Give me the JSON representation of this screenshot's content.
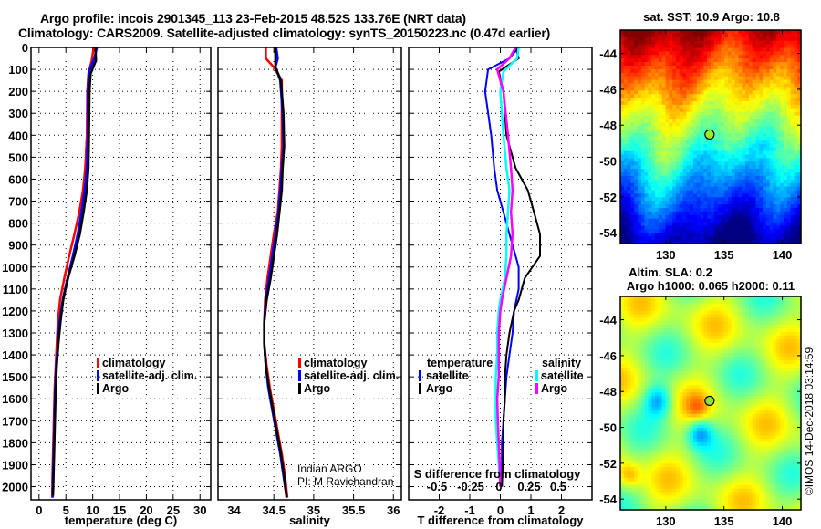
{
  "header": {
    "line1": "Argo profile: incois 2901345_113 23-Feb-2015 48.52S 133.76E (NRT data)",
    "line2": "Climatology: CARS2009. Satellite-adjusted climatology: synTS_20150223.nc (0.47d earlier)"
  },
  "colors": {
    "climatology": "#ff0000",
    "satellite_adj": "#0000ff",
    "argo": "#000000",
    "sal_satellite": "#00ffff",
    "sal_argo": "#ff00ff"
  },
  "chart_data": [
    {
      "type": "line",
      "name": "temperature-profile",
      "xlabel": "temperature (deg C)",
      "ylabel": "",
      "xlim": [
        -1.5,
        32
      ],
      "ylim": [
        2060,
        0
      ],
      "xticks": [
        0,
        5,
        10,
        15,
        20,
        25,
        30
      ],
      "yticks": [
        0,
        100,
        200,
        300,
        400,
        500,
        600,
        700,
        800,
        900,
        1000,
        1100,
        1200,
        1300,
        1400,
        1500,
        1600,
        1700,
        1800,
        1900,
        2000
      ],
      "grid": true,
      "legend": {
        "placement": "center-bottom",
        "entries": [
          "climatology",
          "satellite-adj. clim.",
          "Argo"
        ]
      },
      "series": [
        {
          "name": "climatology",
          "color": "#ff0000",
          "x": [
            10.2,
            9.8,
            9.2,
            9.0,
            8.9,
            8.6,
            8.2,
            7.5,
            6.6,
            5.6,
            4.7,
            3.9,
            3.5,
            3.3,
            3.1,
            2.9,
            2.8,
            2.7,
            2.6,
            2.5,
            2.45
          ],
          "y": [
            0,
            60,
            120,
            200,
            400,
            550,
            650,
            750,
            850,
            950,
            1050,
            1150,
            1250,
            1350,
            1450,
            1550,
            1650,
            1750,
            1850,
            1950,
            2050
          ]
        },
        {
          "name": "satellite-adj. clim.",
          "color": "#0000ff",
          "x": [
            10.8,
            10.3,
            9.3,
            9.1,
            9.1,
            8.9,
            8.5,
            7.9,
            7.2,
            6.3,
            5.3,
            4.4,
            3.8,
            3.5,
            3.2,
            3.0,
            2.9,
            2.8,
            2.7,
            2.6,
            2.55
          ],
          "y": [
            0,
            50,
            110,
            200,
            400,
            550,
            650,
            750,
            850,
            950,
            1050,
            1150,
            1250,
            1350,
            1450,
            1550,
            1650,
            1750,
            1850,
            1950,
            2050
          ]
        },
        {
          "name": "Argo",
          "color": "#000000",
          "x": [
            10.5,
            10.6,
            9.6,
            9.4,
            9.3,
            9.2,
            8.9,
            8.3,
            7.6,
            6.6,
            5.4,
            4.5,
            4.0,
            3.6,
            3.3,
            3.1,
            3.0,
            2.9,
            2.8,
            2.7,
            2.6
          ],
          "y": [
            0,
            60,
            120,
            200,
            400,
            550,
            650,
            750,
            850,
            950,
            1050,
            1150,
            1250,
            1350,
            1450,
            1550,
            1650,
            1750,
            1850,
            1950,
            2040
          ]
        }
      ]
    },
    {
      "type": "line",
      "name": "salinity-profile",
      "xlabel": "salinity",
      "xlim": [
        33.8,
        36.1
      ],
      "ylim": [
        2060,
        0
      ],
      "xticks": [
        34,
        34.5,
        35,
        35.5,
        36
      ],
      "xtick_labels": [
        "34",
        "34.5",
        "35",
        "35.5",
        "36"
      ],
      "grid": true,
      "legend": {
        "placement": "center-bottom",
        "entries": [
          "climatology",
          "satellite-adj. clim.",
          "Argo"
        ]
      },
      "annotation": [
        "Indian ARGO",
        "PI: M Ravichandran"
      ],
      "series": [
        {
          "name": "climatology",
          "color": "#ff0000",
          "x": [
            34.4,
            34.4,
            34.5,
            34.6,
            34.6,
            34.6,
            34.59,
            34.57,
            34.55,
            34.5,
            34.46,
            34.42,
            34.39,
            34.38,
            34.38,
            34.41,
            34.45,
            34.5,
            34.55,
            34.6,
            34.64,
            34.67
          ],
          "y": [
            0,
            50,
            90,
            150,
            300,
            450,
            550,
            650,
            750,
            850,
            950,
            1050,
            1150,
            1250,
            1350,
            1450,
            1550,
            1650,
            1750,
            1850,
            1950,
            2050
          ]
        },
        {
          "name": "satellite-adj. clim.",
          "color": "#0000ff",
          "x": [
            34.53,
            34.55,
            34.52,
            34.58,
            34.61,
            34.62,
            34.6,
            34.58,
            34.56,
            34.52,
            34.48,
            34.44,
            34.4,
            34.38,
            34.38,
            34.4,
            34.43,
            34.48,
            34.53,
            34.58,
            34.62,
            34.66
          ],
          "y": [
            0,
            50,
            90,
            150,
            300,
            450,
            550,
            650,
            750,
            850,
            950,
            1050,
            1150,
            1250,
            1350,
            1450,
            1550,
            1650,
            1750,
            1850,
            1950,
            2050
          ]
        },
        {
          "name": "Argo",
          "color": "#000000",
          "x": [
            34.52,
            34.52,
            34.52,
            34.59,
            34.62,
            34.63,
            34.61,
            34.6,
            34.57,
            34.54,
            34.5,
            34.46,
            34.41,
            34.38,
            34.38,
            34.4,
            34.44,
            34.49,
            34.54,
            34.59,
            34.63,
            34.66
          ],
          "y": [
            0,
            50,
            90,
            150,
            300,
            450,
            550,
            650,
            750,
            850,
            950,
            1050,
            1150,
            1250,
            1350,
            1450,
            1550,
            1650,
            1750,
            1850,
            1950,
            2050
          ]
        }
      ]
    },
    {
      "type": "line",
      "name": "difference-profile",
      "xlabel": "T difference from climatology",
      "xlabel_top": "S difference from climatology",
      "xlim": [
        -3,
        3
      ],
      "ylim": [
        2060,
        0
      ],
      "xticks": [
        -2,
        -1,
        0,
        1,
        2
      ],
      "secondary_xticks": [
        -0.5,
        -0.25,
        0,
        0.25,
        0.5
      ],
      "secondary_xtick_labels": [
        "-0.5",
        "-0.25",
        "0",
        "0.25",
        "0.5"
      ],
      "grid": true,
      "legend": {
        "placement": "bottom",
        "groups": [
          {
            "title": "temperature",
            "entries": [
              "satellite",
              "Argo"
            ]
          },
          {
            "title": "salinity",
            "entries": [
              "satellite",
              "Argo"
            ]
          }
        ]
      },
      "series": [
        {
          "name": "temperature satellite",
          "color": "#0000ff",
          "x": [
            0.6,
            0.3,
            -0.4,
            -0.5,
            -0.3,
            -0.2,
            -0.1,
            0.1,
            0.3,
            0.5,
            0.6,
            0.6,
            0.45,
            0.4,
            0.3,
            0.2,
            0.15,
            0.1,
            0.05,
            0.05,
            0.05
          ],
          "y": [
            0,
            50,
            100,
            200,
            400,
            550,
            650,
            750,
            850,
            950,
            1000,
            1100,
            1200,
            1300,
            1400,
            1500,
            1600,
            1700,
            1800,
            1900,
            2000
          ]
        },
        {
          "name": "temperature Argo",
          "color": "#000000",
          "x": [
            0.5,
            0.6,
            -0.05,
            0.1,
            0.2,
            0.5,
            0.9,
            1.1,
            1.3,
            1.3,
            0.8,
            0.6,
            0.45,
            0.3,
            0.2,
            0.15,
            0.15,
            0.1,
            0.1,
            0.08,
            0.05
          ],
          "y": [
            0,
            50,
            110,
            200,
            400,
            550,
            650,
            750,
            850,
            950,
            1050,
            1150,
            1200,
            1300,
            1400,
            1500,
            1600,
            1700,
            1800,
            1900,
            2000
          ]
        },
        {
          "name": "salinity satellite",
          "color": "#00ffff",
          "x": [
            0.6,
            0.55,
            0.1,
            0.0,
            0.1,
            0.2,
            0.3,
            0.25,
            0.2,
            0.2,
            0.15,
            0.0,
            -0.05,
            -0.1,
            -0.1,
            -0.15,
            -0.15,
            -0.15,
            -0.1,
            -0.05,
            0.0
          ],
          "y": [
            0,
            50,
            110,
            200,
            400,
            550,
            650,
            750,
            850,
            950,
            1050,
            1150,
            1200,
            1300,
            1400,
            1500,
            1600,
            1700,
            1800,
            1900,
            2000
          ]
        },
        {
          "name": "salinity Argo",
          "color": "#ff00ff",
          "x": [
            0.5,
            0.3,
            -0.1,
            0.1,
            0.25,
            0.35,
            0.4,
            0.35,
            0.4,
            0.35,
            0.2,
            0.05,
            0.0,
            -0.05,
            -0.05,
            -0.05,
            -0.1,
            -0.08,
            -0.05,
            -0.02,
            0.0
          ],
          "y": [
            0,
            50,
            100,
            200,
            400,
            550,
            650,
            750,
            850,
            950,
            1050,
            1150,
            1200,
            1300,
            1400,
            1500,
            1600,
            1700,
            1800,
            1900,
            2000
          ]
        }
      ]
    },
    {
      "type": "heatmap",
      "name": "sst-map",
      "title": "sat. SST: 10.9 Argo: 10.8",
      "xticks": [
        130,
        135,
        140
      ],
      "yticks": [
        -44,
        -46,
        -48,
        -50,
        -52,
        -54
      ],
      "xlim": [
        126.1,
        141.6
      ],
      "ylim": [
        -54.6,
        -42.7
      ],
      "marker": {
        "lon": 133.76,
        "lat": -48.52
      }
    },
    {
      "type": "heatmap",
      "name": "sla-map",
      "title": "Altim. SLA: 0.2",
      "subtitle": "Argo h1000: 0.065 h2000: 0.11",
      "xticks": [
        130,
        135,
        140
      ],
      "yticks": [
        -44,
        -46,
        -48,
        -50,
        -52,
        -54
      ],
      "xlim": [
        126.1,
        141.6
      ],
      "ylim": [
        -54.6,
        -42.7
      ],
      "marker": {
        "lon": 133.76,
        "lat": -48.52
      }
    }
  ],
  "maps": {
    "sst_title": "sat. SST: 10.9 Argo: 10.8",
    "sla_title": "Altim. SLA: 0.2",
    "sla_subtitle": "Argo h1000: 0.065 h2000: 0.11"
  },
  "legends": {
    "profile": [
      "climatology",
      "satellite-adj. clim.",
      "Argo"
    ],
    "diff_temp_title": "temperature",
    "diff_sal_title": "salinity",
    "diff_entries": [
      "satellite",
      "Argo"
    ]
  },
  "credit": {
    "line1": "Indian ARGO",
    "line2": "PI: M Ravichandran"
  },
  "copyright": "©IMOS 14-Dec-2018 03:14:59"
}
